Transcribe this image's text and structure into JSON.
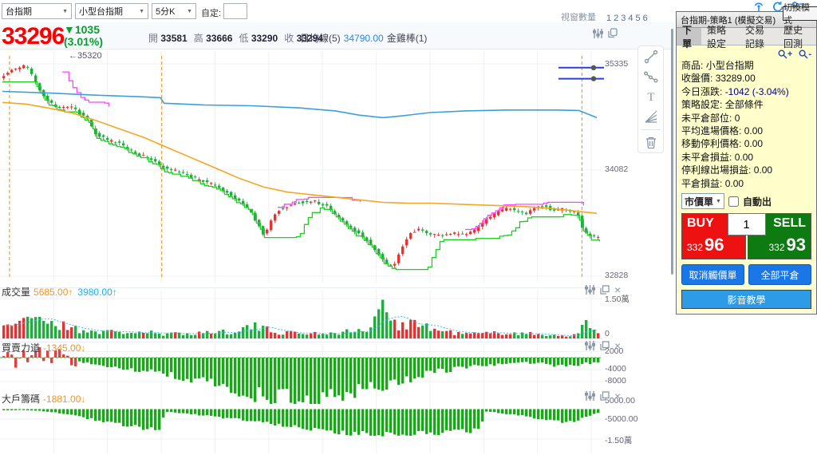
{
  "toolbar": {
    "symbol_select": "台指期",
    "contract_select": "小型台指期",
    "interval_select": "5分K",
    "custom_label": "自定:",
    "window_count_label": "視窗數量",
    "window_numbers": [
      "1",
      "2",
      "3",
      "4",
      "5",
      "6"
    ]
  },
  "quote": {
    "price": "33296",
    "change": "▼1035",
    "change_pct": "(3.01%)",
    "ohlc": [
      {
        "label": "開",
        "value": "33581"
      },
      {
        "label": "高",
        "value": "33666"
      },
      {
        "label": "低",
        "value": "33290"
      },
      {
        "label": "收",
        "value": "33294"
      }
    ],
    "indicator_left": "日均線(5)",
    "indicator_value": "34790.00",
    "indicator_right": "金雞棒(1)"
  },
  "main_chart": {
    "annotation": "←35320",
    "y_labels": [
      "35335",
      "34082",
      "32828"
    ]
  },
  "panels": {
    "volume": {
      "label": "成交量",
      "v1": "5685.00↑",
      "v2": "3980.00↑",
      "y_labels": [
        "1.50萬",
        "0"
      ]
    },
    "power": {
      "label": "買賣力道",
      "v1": "-1345.00↓",
      "y_labels": [
        "2000",
        "-4000",
        "-8000"
      ]
    },
    "chips": {
      "label": "大戶籌碼",
      "v1": "-1881.00↓",
      "y_labels": [
        "5000.00",
        "-5000.00",
        "-1.50萬"
      ]
    }
  },
  "side_panel": {
    "title": "台指期-策略1 (模擬交易)",
    "switch_mode": "切換模式",
    "tabs": [
      "下單",
      "策略設定",
      "交易記錄",
      "歷史回測"
    ],
    "active_tab": "下單",
    "info": [
      {
        "label": "商品:",
        "value": "小型台指期"
      },
      {
        "label": "收盤價:",
        "value": "33289.00"
      },
      {
        "label": "今日漲跌:",
        "value": "-1042 (-3.04%)"
      },
      {
        "label": "策略設定:",
        "value": "全部條件"
      },
      {
        "label": "未平倉部位:",
        "value": "0"
      },
      {
        "label": "平均進場價格:",
        "value": "0.00"
      },
      {
        "label": "移動停利價格:",
        "value": "0.00"
      },
      {
        "label": "未平倉損益:",
        "value": "0.00"
      },
      {
        "label": "停利線出場損益:",
        "value": "0.00"
      },
      {
        "label": "平倉損益:",
        "value": "0.00"
      }
    ],
    "order_type": "市價單",
    "auto_label": "自動出",
    "qty": "1",
    "buy": {
      "label": "BUY",
      "price_small": "332",
      "price_big": "96"
    },
    "sell": {
      "label": "SELL",
      "price_small": "332",
      "price_big": "93"
    },
    "cancel_trigger": "取消觸價單",
    "close_all": "全部平倉",
    "tutorial": "影音教學"
  },
  "icons": {
    "close_glyph": "×",
    "select_caret": "▼"
  },
  "colors": {
    "up_candle": "#e43333",
    "down_candle": "#1fae3c",
    "ma_blue": "#3aa0d8",
    "ma_orange": "#f5a623",
    "trail_green": "#22cc22",
    "trail_magenta": "#ff44ff",
    "session_dash": "#f0a030",
    "buy_red": "#ee1111",
    "sell_green": "#0d7a12",
    "accent_blue": "#1e90ff",
    "vol_orange": "#f79321",
    "vol_cyan": "#17b6e8",
    "hline_blue": "#2b3fd6"
  },
  "chart_data": {
    "main": {
      "type": "candlestick",
      "y_range": [
        32828,
        35335
      ],
      "y_ticks": [
        35335,
        34082,
        32828
      ],
      "n_candles": 150,
      "session_breaks_t": [
        0.012,
        0.268,
        0.975
      ],
      "hlines": [
        35290,
        35160
      ],
      "price_path": [
        [
          0,
          35180
        ],
        [
          0.02,
          35260
        ],
        [
          0.045,
          35320
        ],
        [
          0.06,
          35100
        ],
        [
          0.08,
          34900
        ],
        [
          0.1,
          34810
        ],
        [
          0.12,
          34820
        ],
        [
          0.145,
          34700
        ],
        [
          0.16,
          34520
        ],
        [
          0.18,
          34430
        ],
        [
          0.2,
          34400
        ],
        [
          0.215,
          34330
        ],
        [
          0.24,
          34250
        ],
        [
          0.265,
          34170
        ],
        [
          0.272,
          34120
        ],
        [
          0.3,
          34060
        ],
        [
          0.33,
          33980
        ],
        [
          0.36,
          33900
        ],
        [
          0.39,
          33780
        ],
        [
          0.42,
          33600
        ],
        [
          0.435,
          33420
        ],
        [
          0.445,
          33300
        ],
        [
          0.455,
          33480
        ],
        [
          0.47,
          33620
        ],
        [
          0.5,
          33700
        ],
        [
          0.53,
          33710
        ],
        [
          0.55,
          33650
        ],
        [
          0.57,
          33520
        ],
        [
          0.59,
          33400
        ],
        [
          0.61,
          33300
        ],
        [
          0.63,
          33150
        ],
        [
          0.65,
          32980
        ],
        [
          0.662,
          32940
        ],
        [
          0.675,
          33150
        ],
        [
          0.69,
          33330
        ],
        [
          0.705,
          33390
        ],
        [
          0.72,
          33340
        ],
        [
          0.74,
          33300
        ],
        [
          0.76,
          33340
        ],
        [
          0.78,
          33320
        ],
        [
          0.8,
          33380
        ],
        [
          0.82,
          33500
        ],
        [
          0.84,
          33600
        ],
        [
          0.855,
          33640
        ],
        [
          0.87,
          33580
        ],
        [
          0.885,
          33560
        ],
        [
          0.9,
          33630
        ],
        [
          0.915,
          33660
        ],
        [
          0.93,
          33600
        ],
        [
          0.945,
          33620
        ],
        [
          0.96,
          33600
        ],
        [
          0.972,
          33560
        ],
        [
          0.98,
          33400
        ],
        [
          0.99,
          33310
        ],
        [
          1,
          33294
        ]
      ],
      "ma_blue": [
        [
          0,
          35010
        ],
        [
          0.08,
          34990
        ],
        [
          0.16,
          34965
        ],
        [
          0.24,
          34945
        ],
        [
          0.266,
          34935
        ],
        [
          0.272,
          34870
        ],
        [
          0.34,
          34850
        ],
        [
          0.42,
          34840
        ],
        [
          0.5,
          34815
        ],
        [
          0.56,
          34780
        ],
        [
          0.6,
          34730
        ],
        [
          0.64,
          34700
        ],
        [
          0.67,
          34720
        ],
        [
          0.72,
          34760
        ],
        [
          0.78,
          34780
        ],
        [
          0.85,
          34790
        ],
        [
          0.93,
          34790
        ],
        [
          0.97,
          34785
        ],
        [
          1,
          34700
        ]
      ],
      "ma_orange": [
        [
          0,
          34880
        ],
        [
          0.04,
          34860
        ],
        [
          0.08,
          34810
        ],
        [
          0.12,
          34750
        ],
        [
          0.16,
          34660
        ],
        [
          0.2,
          34560
        ],
        [
          0.24,
          34460
        ],
        [
          0.28,
          34340
        ],
        [
          0.32,
          34220
        ],
        [
          0.36,
          34100
        ],
        [
          0.4,
          33980
        ],
        [
          0.44,
          33880
        ],
        [
          0.48,
          33820
        ],
        [
          0.52,
          33790
        ],
        [
          0.56,
          33760
        ],
        [
          0.6,
          33730
        ],
        [
          0.64,
          33700
        ],
        [
          0.68,
          33690
        ],
        [
          0.72,
          33690
        ],
        [
          0.76,
          33680
        ],
        [
          0.8,
          33670
        ],
        [
          0.84,
          33660
        ],
        [
          0.88,
          33650
        ],
        [
          0.92,
          33630
        ],
        [
          0.96,
          33600
        ],
        [
          1,
          33570
        ]
      ],
      "magenta_ranges": [
        [
          0.1,
          0.175
        ],
        [
          0.46,
          0.6
        ],
        [
          0.78,
          0.975
        ]
      ]
    },
    "volume": {
      "type": "bar",
      "max": 15000,
      "profile": [
        [
          0,
          5200
        ],
        [
          0.02,
          6200
        ],
        [
          0.04,
          7600
        ],
        [
          0.055,
          8200
        ],
        [
          0.07,
          6800
        ],
        [
          0.09,
          5200
        ],
        [
          0.11,
          4200
        ],
        [
          0.13,
          3200
        ],
        [
          0.16,
          2600
        ],
        [
          0.19,
          2300
        ],
        [
          0.22,
          2400
        ],
        [
          0.25,
          2100
        ],
        [
          0.268,
          1200
        ],
        [
          0.29,
          1900
        ],
        [
          0.32,
          2100
        ],
        [
          0.35,
          2300
        ],
        [
          0.38,
          2700
        ],
        [
          0.405,
          4000
        ],
        [
          0.42,
          4400
        ],
        [
          0.44,
          3300
        ],
        [
          0.47,
          2300
        ],
        [
          0.5,
          2000
        ],
        [
          0.53,
          1900
        ],
        [
          0.56,
          2300
        ],
        [
          0.59,
          2700
        ],
        [
          0.62,
          3600
        ],
        [
          0.636,
          14200
        ],
        [
          0.648,
          8000
        ],
        [
          0.66,
          5600
        ],
        [
          0.672,
          5200
        ],
        [
          0.685,
          6800
        ],
        [
          0.7,
          5200
        ],
        [
          0.72,
          3600
        ],
        [
          0.75,
          2300
        ],
        [
          0.78,
          1700
        ],
        [
          0.81,
          1900
        ],
        [
          0.84,
          2200
        ],
        [
          0.87,
          1900
        ],
        [
          0.9,
          1500
        ],
        [
          0.93,
          1300
        ],
        [
          0.955,
          1100
        ],
        [
          0.968,
          1400
        ],
        [
          0.975,
          5800
        ],
        [
          0.985,
          4300
        ],
        [
          1,
          2400
        ]
      ]
    },
    "power": {
      "type": "bar",
      "red_until_t": 0.125,
      "red_amp": 3600,
      "profile": [
        [
          0,
          -600
        ],
        [
          0.13,
          -1400
        ],
        [
          0.16,
          -2400
        ],
        [
          0.2,
          -3400
        ],
        [
          0.24,
          -4400
        ],
        [
          0.28,
          -5600
        ],
        [
          0.32,
          -7200
        ],
        [
          0.36,
          -9200
        ],
        [
          0.4,
          -11200
        ],
        [
          0.44,
          -12600
        ],
        [
          0.48,
          -13200
        ],
        [
          0.52,
          -13400
        ],
        [
          0.56,
          -12800
        ],
        [
          0.6,
          -11000
        ],
        [
          0.64,
          -9000
        ],
        [
          0.68,
          -7000
        ],
        [
          0.72,
          -5000
        ],
        [
          0.76,
          -3600
        ],
        [
          0.8,
          -2600
        ],
        [
          0.84,
          -2000
        ],
        [
          0.88,
          -1600
        ],
        [
          0.91,
          -2100
        ],
        [
          0.94,
          -2900
        ],
        [
          0.97,
          -2300
        ],
        [
          1,
          -1345
        ]
      ]
    },
    "chips": {
      "type": "bar",
      "profile": [
        [
          0,
          -600
        ],
        [
          0.03,
          -500
        ],
        [
          0.06,
          -900
        ],
        [
          0.09,
          -1900
        ],
        [
          0.12,
          -3400
        ],
        [
          0.15,
          -5200
        ],
        [
          0.18,
          -7000
        ],
        [
          0.21,
          -8600
        ],
        [
          0.24,
          -9600
        ],
        [
          0.262,
          -10200
        ],
        [
          0.272,
          -1200
        ],
        [
          0.3,
          -2000
        ],
        [
          0.34,
          -3200
        ],
        [
          0.38,
          -4600
        ],
        [
          0.42,
          -6200
        ],
        [
          0.46,
          -7800
        ],
        [
          0.5,
          -9400
        ],
        [
          0.54,
          -10800
        ],
        [
          0.58,
          -12000
        ],
        [
          0.62,
          -12600
        ],
        [
          0.66,
          -12600
        ],
        [
          0.7,
          -12400
        ],
        [
          0.74,
          -11800
        ],
        [
          0.78,
          -11200
        ],
        [
          0.8,
          -10800
        ],
        [
          0.81,
          -1100
        ],
        [
          0.84,
          -2100
        ],
        [
          0.88,
          -3600
        ],
        [
          0.92,
          -5600
        ],
        [
          0.95,
          -6600
        ],
        [
          0.97,
          -5100
        ],
        [
          0.99,
          -3100
        ],
        [
          1,
          -1900
        ]
      ]
    }
  }
}
